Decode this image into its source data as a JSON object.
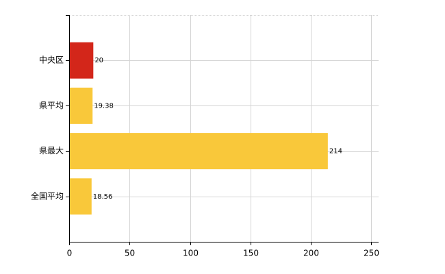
{
  "chart_data": {
    "type": "bar",
    "orientation": "horizontal",
    "categories": [
      "中央区",
      "県平均",
      "県最大",
      "全国平均"
    ],
    "values": [
      20,
      19.38,
      214,
      18.56
    ],
    "colors": [
      "#d3261a",
      "#f9c83a",
      "#f9c83a",
      "#f9c83a"
    ],
    "xlim": [
      0,
      256
    ],
    "xticks": [
      0,
      50,
      100,
      150,
      200,
      250
    ],
    "grid": true
  }
}
